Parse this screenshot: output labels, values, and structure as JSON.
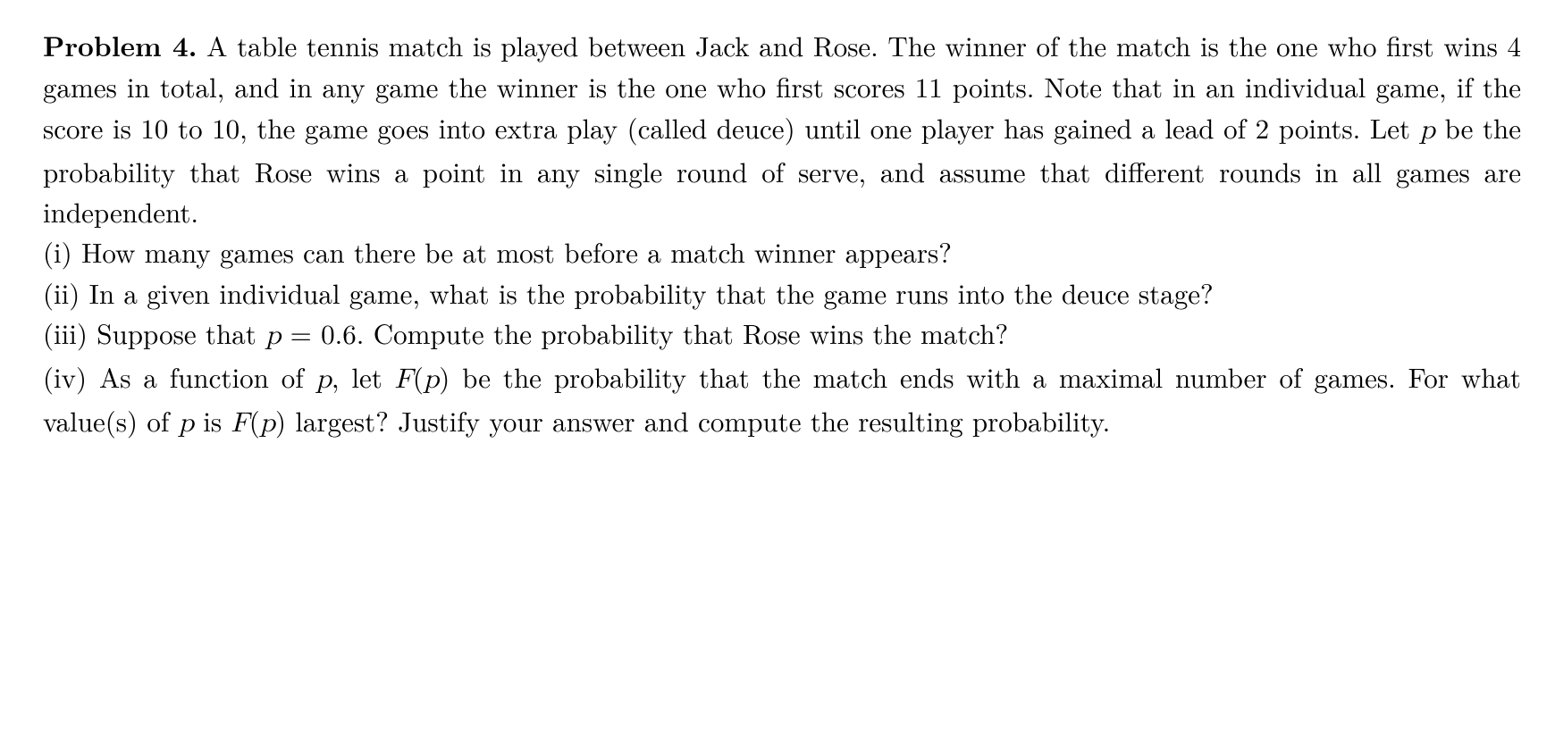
{
  "problem": {
    "label": "Problem 4.",
    "intro_1": " A table tennis match is played between Jack and Rose. The winner of the match is the one who first wins 4 games in total, and in any game the winner is the one who first scores 11 points. Note that in an individual game, if the score is 10 to 10, the game goes into extra play (called deuce) until one player has gained a lead of 2 points. Let ",
    "p_var": "p",
    "intro_2": " be the probability that Rose wins a point in any single round of serve, and assume that different rounds in all games are independent.",
    "parts": {
      "i": {
        "label": "(i)",
        "text": " How many games can there be at most before a match winner appears?"
      },
      "ii": {
        "label": "(ii)",
        "text": " In a given individual game, what is the probability that the game runs into the deuce stage?"
      },
      "iii": {
        "label": "(iii)",
        "text_a": " Suppose that ",
        "eq_lhs": "p",
        "eq_mid": " = 0.6",
        "text_b": ". Compute the probability that Rose wins the match?"
      },
      "iv": {
        "label": "(iv)",
        "text_a": " As a function of ",
        "p1": "p",
        "text_b": ", let ",
        "F": "F",
        "paren_open1": "(",
        "p_in_F1": "p",
        "paren_close1": ")",
        "text_c": " be the probability that the match ends with a maximal number of games. For what value(s) of ",
        "p2": "p",
        "text_d": " is ",
        "F2": "F",
        "paren_open2": "(",
        "p_in_F2": "p",
        "paren_close2": ")",
        "text_e": " largest? Justify your answer and compute the resulting probability."
      }
    }
  }
}
